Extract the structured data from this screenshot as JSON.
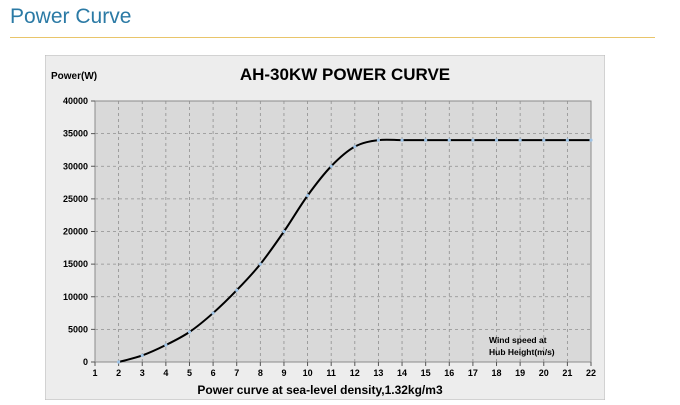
{
  "header": {
    "title": "Power Curve"
  },
  "colors": {
    "header_title": "#2b7aa5",
    "header_rule": "#e9c56a",
    "plot_background": "#d9d9d9",
    "chart_background": "#ededed",
    "curve": "#000000",
    "marker": "#9ec3e6"
  },
  "chart_data": {
    "type": "line",
    "title": "AH-30KW  POWER CURVE",
    "ylabel": "Power(W)",
    "xlabel": "Power curve at sea-level density,1.32kg/m3",
    "annotation_line1": "Wind speed at",
    "annotation_line2": "Hub Height(m/s)",
    "xlim": [
      1,
      22
    ],
    "ylim": [
      0,
      40000
    ],
    "x_ticks": [
      1,
      2,
      3,
      4,
      5,
      6,
      7,
      8,
      9,
      10,
      11,
      12,
      13,
      14,
      15,
      16,
      17,
      18,
      19,
      20,
      21,
      22
    ],
    "y_ticks": [
      0,
      5000,
      10000,
      15000,
      20000,
      25000,
      30000,
      35000,
      40000
    ],
    "grid": true,
    "series": [
      {
        "x": [
          2,
          3,
          4,
          5,
          6,
          7,
          8,
          9,
          10,
          11,
          12,
          13,
          14,
          15,
          16,
          17,
          18,
          19,
          20,
          21,
          22
        ],
        "values": [
          0,
          1000,
          2600,
          4600,
          7500,
          11000,
          15000,
          20000,
          25500,
          30000,
          33000,
          34000,
          34000,
          34000,
          34000,
          34000,
          34000,
          34000,
          34000,
          34000,
          34000
        ]
      }
    ]
  }
}
